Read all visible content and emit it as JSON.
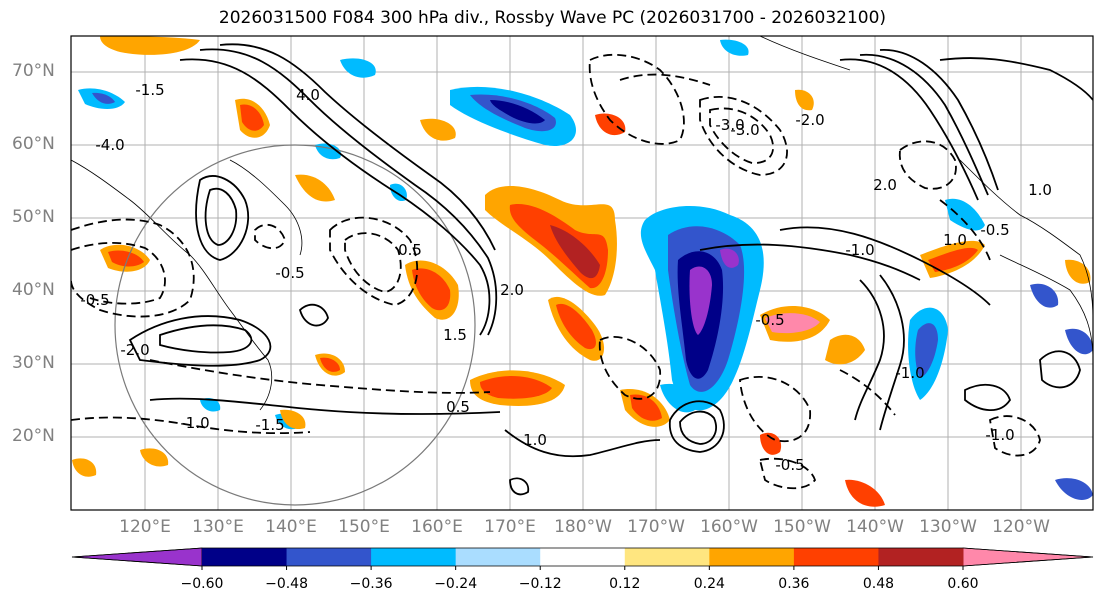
{
  "title": "2026031500 F084 300 hPa div., Rossby Wave PC (2026031700 - 2026032100)",
  "map": {
    "lat_labels": [
      "70°N",
      "60°N",
      "50°N",
      "40°N",
      "30°N",
      "20°N"
    ],
    "lon_labels": [
      "120°E",
      "130°E",
      "140°E",
      "150°E",
      "160°E",
      "170°E",
      "180°W",
      "170°W",
      "160°W",
      "150°W",
      "140°W",
      "130°W",
      "120°W"
    ],
    "contour_labels": [
      "-0.5",
      "-1.5",
      "-4.0",
      "-2.0",
      "-1.0",
      "-3.0",
      "-2.0",
      "-0.5",
      "-1.5",
      "-1.0",
      "-1.0",
      "-0.5",
      "-3.0",
      "-0.5",
      "0.5",
      "1.0",
      "2.0",
      "4.0",
      "2.0",
      "1.0",
      "0.5",
      "-1.0",
      "1.5",
      "1.0",
      "-0.5"
    ]
  },
  "colorbar": {
    "levels": [
      "−0.60",
      "−0.48",
      "−0.36",
      "−0.24",
      "−0.12",
      "0.12",
      "0.24",
      "0.36",
      "0.48",
      "0.60"
    ],
    "colors": [
      "#9933cc",
      "#000088",
      "#3355cc",
      "#00bbff",
      "#aaddff",
      "#ffffff",
      "#ffe680",
      "#ffa500",
      "#ff4000",
      "#b22222",
      "#ff88aa"
    ]
  }
}
